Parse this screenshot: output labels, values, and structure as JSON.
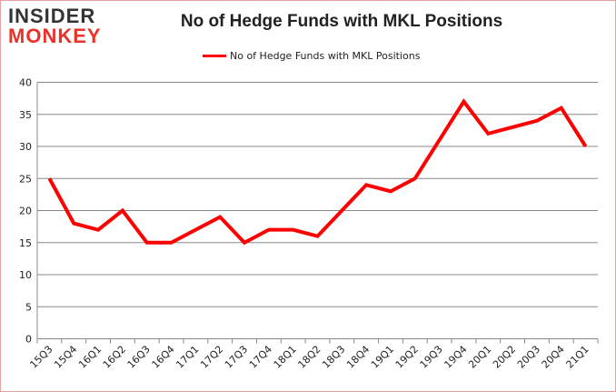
{
  "logo": {
    "line1": "INSIDER",
    "line2": "MONKEY"
  },
  "chart_data": {
    "type": "line",
    "title": "No of Hedge Funds with MKL Positions",
    "categories": [
      "15Q3",
      "15Q4",
      "16Q1",
      "16Q2",
      "16Q3",
      "16Q4",
      "17Q1",
      "17Q2",
      "17Q3",
      "17Q4",
      "18Q1",
      "18Q2",
      "18Q3",
      "18Q4",
      "19Q1",
      "19Q2",
      "19Q3",
      "19Q4",
      "20Q1",
      "20Q2",
      "20Q3",
      "20Q4",
      "21Q1"
    ],
    "series": [
      {
        "name": "No of Hedge Funds with MKL Positions",
        "values": [
          25,
          18,
          17,
          20,
          15,
          15,
          17,
          19,
          15,
          17,
          17,
          16,
          20,
          24,
          23,
          25,
          31,
          37,
          32,
          33,
          34,
          36,
          30
        ],
        "color": "#ff0000"
      }
    ],
    "ylim": [
      0,
      40
    ],
    "yticks": [
      0,
      5,
      10,
      15,
      20,
      25,
      30,
      35,
      40
    ],
    "grid": true,
    "legend": "top"
  }
}
